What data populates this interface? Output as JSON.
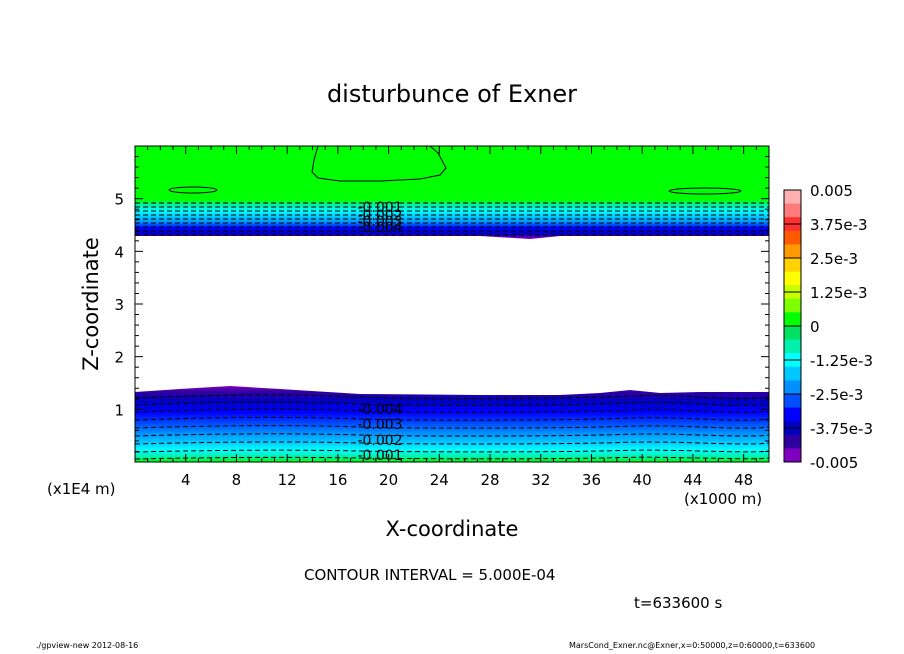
{
  "chart_data": {
    "type": "contour",
    "title": "disturbunce of Exner",
    "xlabel": "X-coordinate",
    "ylabel": "Z-coordinate",
    "x_unit_label": "(x1000 m)",
    "y_unit_label": "(x1E4 m)",
    "xlim": [
      0,
      50
    ],
    "ylim": [
      0,
      6
    ],
    "x_ticks": [
      "4",
      "8",
      "12",
      "16",
      "20",
      "24",
      "28",
      "32",
      "36",
      "40",
      "44",
      "48"
    ],
    "y_ticks": [
      "1",
      "2",
      "3",
      "4",
      "5"
    ],
    "colorbar": {
      "labels": [
        "0.005",
        "3.75e-3",
        "2.5e-3",
        "1.25e-3",
        "0",
        "-1.25e-3",
        "-2.5e-3",
        "-3.75e-3",
        "-0.005"
      ],
      "levels": [
        0.005,
        0.00375,
        0.0025,
        0.00125,
        0,
        -0.00125,
        -0.0025,
        -0.00375,
        -0.005
      ],
      "colors": [
        "#ffb0b0",
        "#ff7a7a",
        "#ff3030",
        "#ff5a00",
        "#ff9a00",
        "#ffd200",
        "#ffff00",
        "#c8ff00",
        "#7cff00",
        "#00ff00",
        "#00e060",
        "#00f0b0",
        "#00ffff",
        "#00c8ff",
        "#0090ff",
        "#0050ff",
        "#0000ff",
        "#0000c0",
        "#3000a0",
        "#8000c0"
      ]
    },
    "contour_labels": {
      "upper": [
        "-0.001",
        "-0.002",
        "-0.003",
        "-0.004"
      ],
      "lower": [
        "-0.004",
        "-0.003",
        "-0.002",
        "-0.001"
      ]
    },
    "contour_interval_text": "CONTOUR INTERVAL = 5.000E-04",
    "time_text": "t=633600 s"
  },
  "footer": {
    "left": "./gpview-new 2012-08-16",
    "right": "MarsCond_Exner.nc@Exner,x=0:50000,z=0:60000,t=633600"
  }
}
